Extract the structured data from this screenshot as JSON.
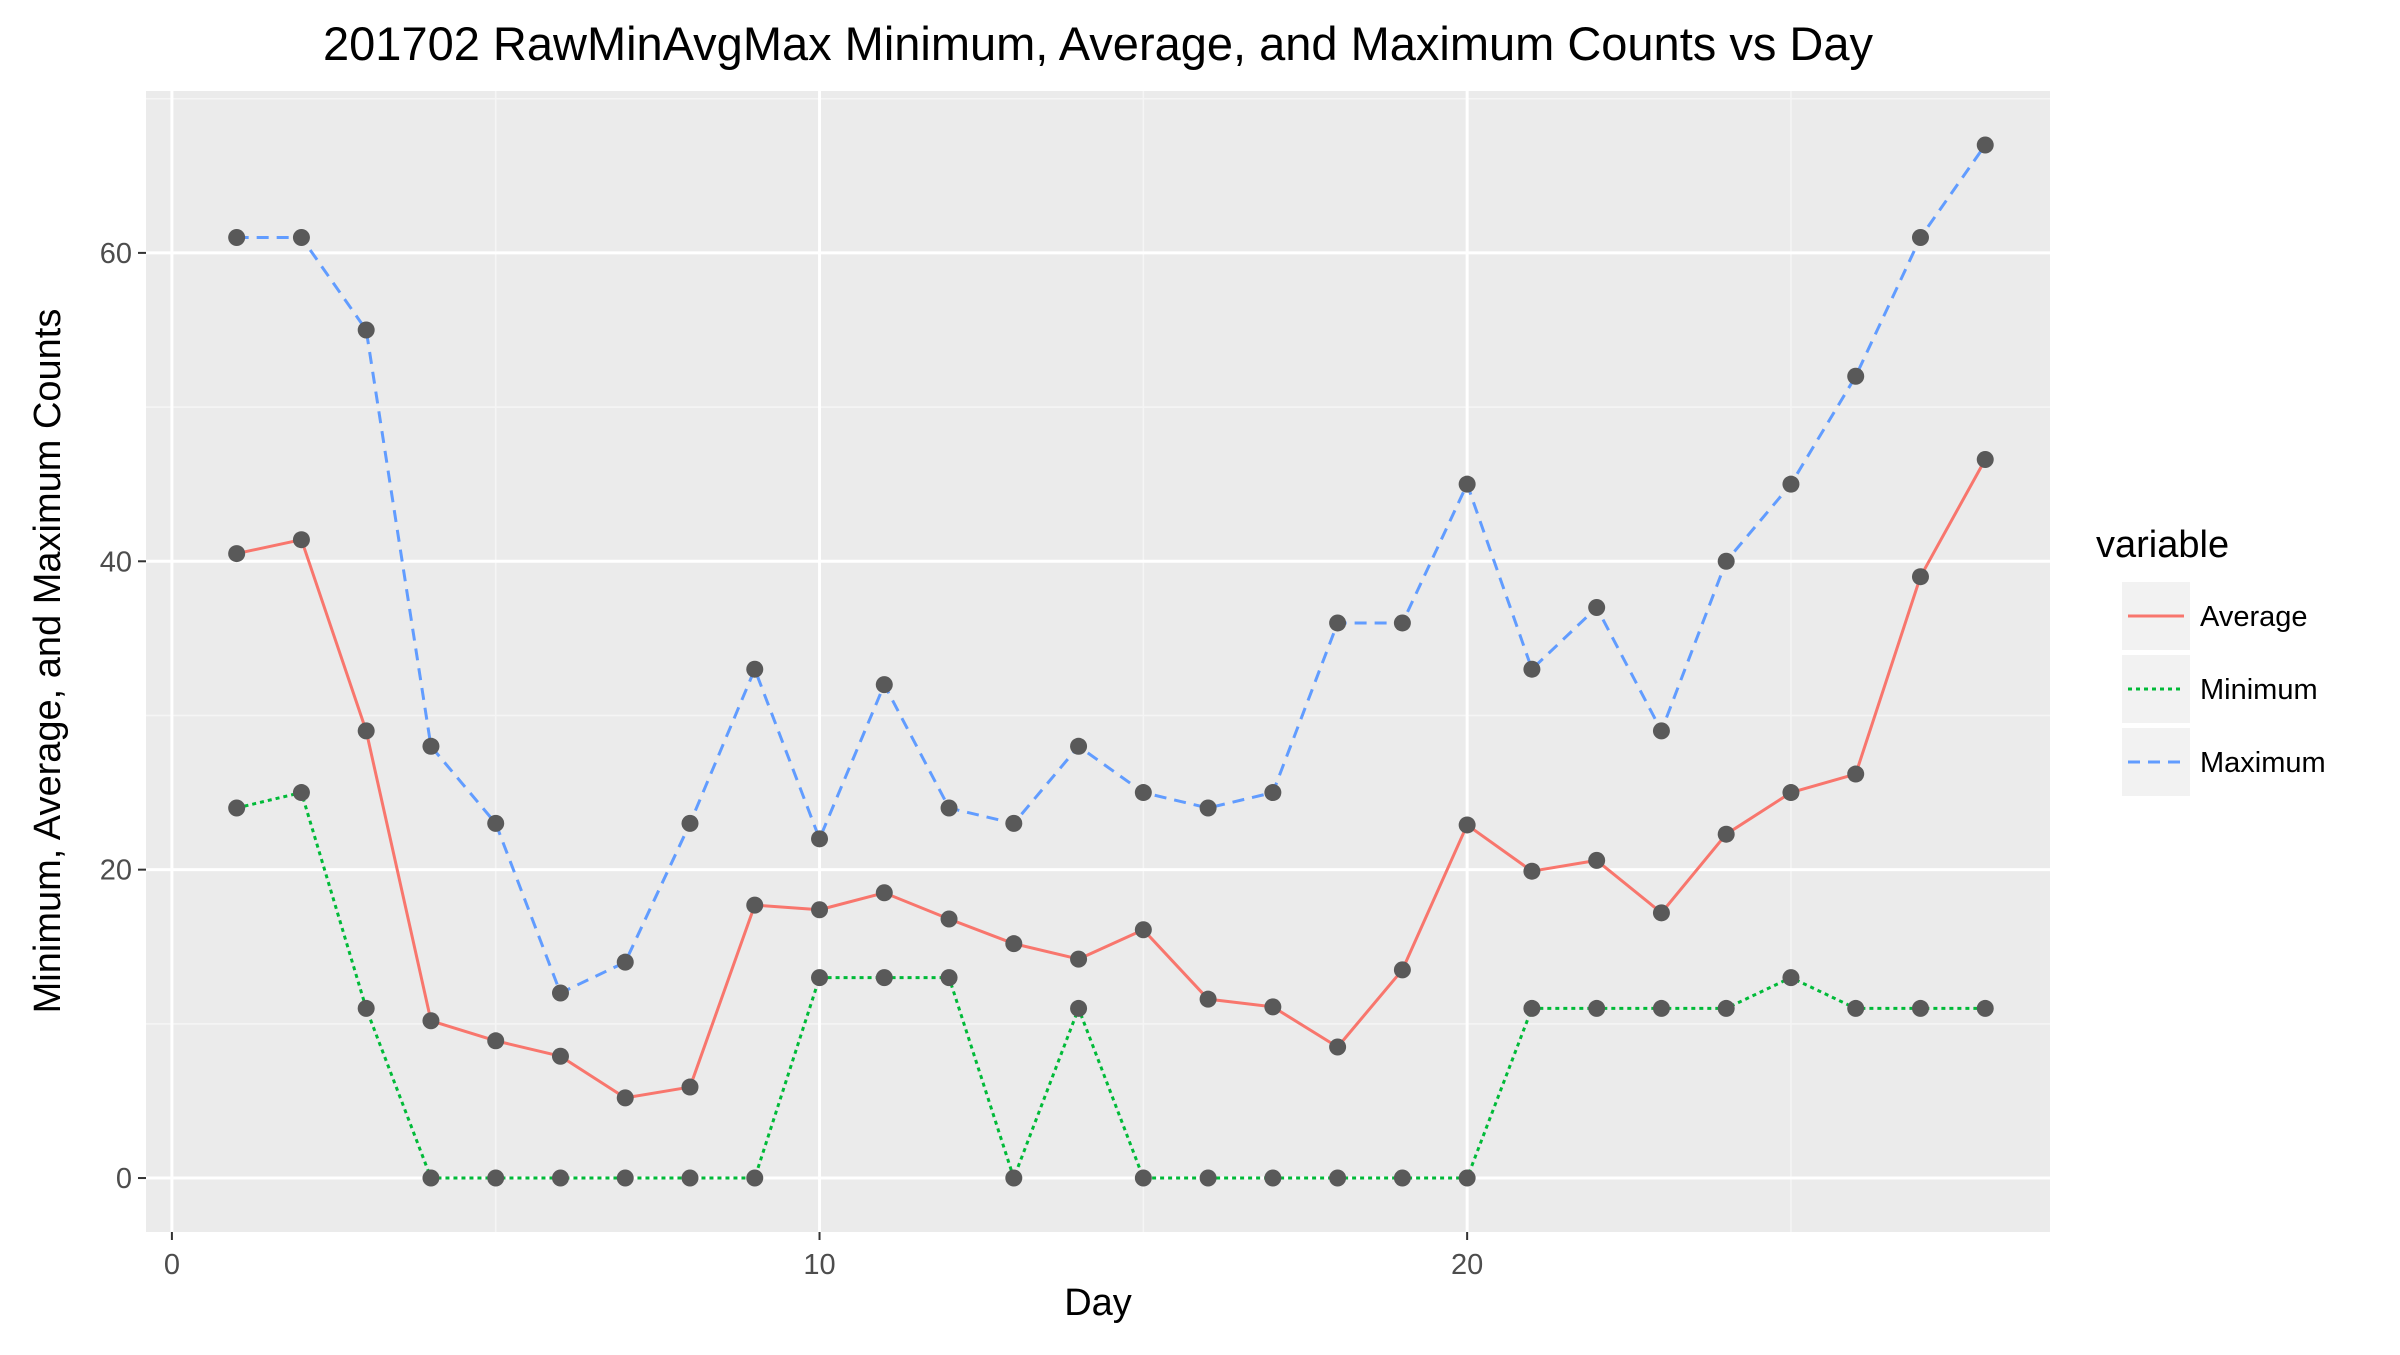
{
  "chart_data": {
    "type": "line",
    "title": "201702 RawMinAvgMax Minimum, Average, and Maximum Counts vs Day",
    "xlabel": "Day",
    "ylabel": "Minimum, Average, and Maximum Counts",
    "xlim": [
      -0.4,
      29.0
    ],
    "ylim": [
      -3.5,
      70.5
    ],
    "x_ticks": [
      0,
      10,
      20
    ],
    "y_ticks": [
      0,
      20,
      40,
      60
    ],
    "x_tick_labels": [
      "0",
      "10",
      "20"
    ],
    "y_tick_labels": [
      "0",
      "20",
      "40",
      "60"
    ],
    "grid": true,
    "legend_title": "variable",
    "legend_position": "right",
    "point_color": "#595959",
    "x": [
      1,
      2,
      3,
      4,
      5,
      6,
      7,
      8,
      9,
      10,
      11,
      12,
      13,
      14,
      15,
      16,
      17,
      18,
      19,
      20,
      21,
      22,
      23,
      24,
      25,
      26,
      27,
      28
    ],
    "series": [
      {
        "name": "Average",
        "color": "#F8766D",
        "dash": "solid",
        "values": [
          40.5,
          41.4,
          29.0,
          10.2,
          8.9,
          7.9,
          5.2,
          5.9,
          17.7,
          17.4,
          18.5,
          16.8,
          15.2,
          14.2,
          16.1,
          11.6,
          11.1,
          8.5,
          13.5,
          22.9,
          19.9,
          20.6,
          17.2,
          22.3,
          25.0,
          26.2,
          39.0,
          46.6
        ]
      },
      {
        "name": "Minimum",
        "color": "#00BA38",
        "dash": "dotted",
        "values": [
          24,
          25,
          11,
          0,
          0,
          0,
          0,
          0,
          0,
          13,
          13,
          13,
          0,
          11,
          0,
          0,
          0,
          0,
          0,
          0,
          11,
          11,
          11,
          11,
          13,
          11,
          11,
          11
        ]
      },
      {
        "name": "Maximum",
        "color": "#619CFF",
        "dash": "dashed",
        "values": [
          61,
          61,
          55,
          28,
          23,
          12,
          14,
          23,
          33,
          22,
          32,
          24,
          23,
          28,
          25,
          24,
          25,
          36,
          36,
          45,
          33,
          37,
          29,
          40,
          45,
          52,
          61,
          67
        ]
      }
    ]
  }
}
